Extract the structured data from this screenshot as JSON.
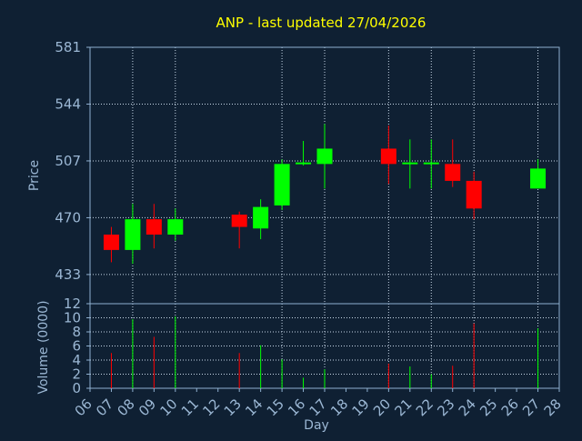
{
  "chart_data": {
    "type": "candlestick",
    "title": "ANP - last updated 27/04/2026",
    "xlabel": "Day",
    "price_panel": {
      "ylabel": "Price",
      "ylim": [
        414,
        581
      ],
      "y_ticks": [
        581,
        544,
        507,
        470,
        433
      ]
    },
    "volume_panel": {
      "ylabel": "Volume (0000)",
      "ylim": [
        0,
        12
      ],
      "y_ticks": [
        12,
        10,
        8,
        6,
        4,
        2,
        0
      ]
    },
    "x_ticks": [
      "06",
      "07",
      "08",
      "09",
      "10",
      "11",
      "12",
      "13",
      "14",
      "15",
      "16",
      "17",
      "18",
      "19",
      "20",
      "21",
      "22",
      "23",
      "24",
      "25",
      "26",
      "27",
      "28"
    ],
    "x_gridlines": [
      "08",
      "10",
      "15",
      "17",
      "20",
      "22",
      "24",
      "27"
    ],
    "up_color": "#00ff00",
    "down_color": "#ff0000",
    "grid": true,
    "candles": [
      {
        "day": "07",
        "open": 459,
        "high": 464,
        "low": 441,
        "close": 449,
        "volume": 5.0
      },
      {
        "day": "08",
        "open": 449,
        "high": 479,
        "low": 440,
        "close": 469,
        "volume": 9.8
      },
      {
        "day": "09",
        "open": 469,
        "high": 479,
        "low": 450,
        "close": 459,
        "volume": 7.3
      },
      {
        "day": "10",
        "open": 459,
        "high": 476,
        "low": 455,
        "close": 469,
        "volume": 10.2
      },
      {
        "day": "13",
        "open": 472,
        "high": 474,
        "low": 450,
        "close": 464,
        "volume": 5.0
      },
      {
        "day": "14",
        "open": 463,
        "high": 482,
        "low": 456,
        "close": 477,
        "volume": 6.1
      },
      {
        "day": "15",
        "open": 478,
        "high": 508,
        "low": 475,
        "close": 505,
        "volume": 4.1
      },
      {
        "day": "16",
        "open": 505,
        "high": 520,
        "low": 504,
        "close": 506,
        "volume": 1.5
      },
      {
        "day": "17",
        "open": 505,
        "high": 531,
        "low": 489,
        "close": 515,
        "volume": 2.7
      },
      {
        "day": "20",
        "open": 515,
        "high": 530,
        "low": 492,
        "close": 505,
        "volume": 3.5
      },
      {
        "day": "21",
        "open": 505,
        "high": 521,
        "low": 489,
        "close": 506,
        "volume": 3.1
      },
      {
        "day": "22",
        "open": 505,
        "high": 521,
        "low": 489,
        "close": 506,
        "volume": 2.0
      },
      {
        "day": "23",
        "open": 505,
        "high": 521,
        "low": 490,
        "close": 494,
        "volume": 3.2
      },
      {
        "day": "24",
        "open": 494,
        "high": 500,
        "low": 469,
        "close": 476,
        "volume": 9.2
      },
      {
        "day": "27",
        "open": 489,
        "high": 508,
        "low": 489,
        "close": 502,
        "volume": 8.5
      }
    ]
  }
}
